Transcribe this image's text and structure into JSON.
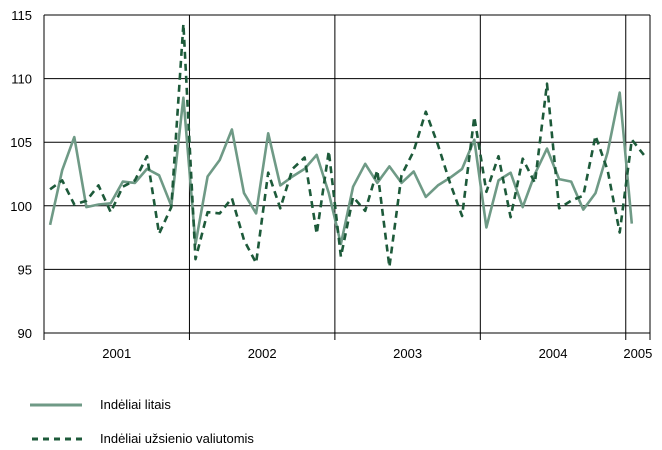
{
  "chart_data": {
    "type": "line",
    "ylim": [
      90,
      115
    ],
    "yticks": [
      90,
      95,
      100,
      105,
      110,
      115
    ],
    "grid": true,
    "legend_position": "bottom-left",
    "x_start": "2001-01",
    "year_labels": [
      "2001",
      "2002",
      "2003",
      "2004",
      "2005"
    ],
    "series": [
      {
        "name": "Indėliai litais",
        "color": "#6f9a86",
        "style": "solid",
        "values": [
          98.5,
          102.8,
          105.4,
          99.9,
          100.1,
          100.2,
          101.9,
          101.8,
          102.9,
          102.4,
          100.0,
          108.5,
          97.0,
          102.3,
          103.6,
          106.0,
          101.0,
          99.4,
          105.7,
          101.6,
          102.3,
          102.9,
          104.0,
          101.0,
          97.0,
          101.5,
          103.3,
          101.8,
          103.1,
          101.8,
          102.7,
          100.7,
          101.6,
          102.2,
          102.9,
          105.2,
          98.3,
          102.0,
          102.6,
          99.9,
          102.5,
          104.5,
          102.1,
          101.9,
          99.7,
          101.0,
          104.2,
          108.9,
          98.6
        ]
      },
      {
        "name": "Indėliai užsienio valiutomis",
        "color": "#1d5a3a",
        "style": "dashed",
        "values": [
          101.3,
          102.0,
          100.1,
          100.4,
          101.6,
          99.5,
          101.5,
          102.0,
          103.9,
          97.8,
          99.9,
          114.3,
          95.8,
          99.5,
          99.4,
          100.6,
          97.3,
          95.5,
          102.6,
          99.8,
          102.9,
          103.8,
          97.8,
          104.3,
          96.0,
          100.7,
          99.6,
          102.8,
          95.2,
          102.4,
          104.3,
          107.4,
          104.8,
          101.8,
          99.2,
          107.0,
          101.1,
          103.9,
          99.1,
          103.7,
          101.8,
          109.6,
          99.8,
          100.4,
          100.8,
          105.5,
          102.8,
          97.9,
          105.2,
          104.0
        ]
      }
    ]
  }
}
